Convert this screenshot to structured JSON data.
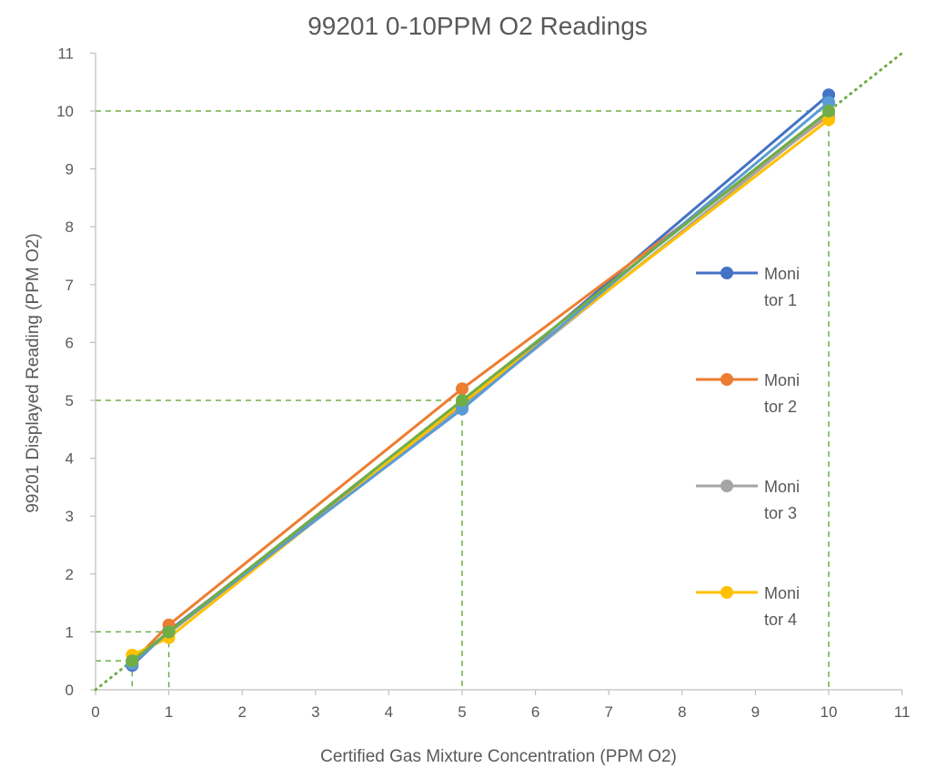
{
  "chart_data": {
    "type": "line",
    "title": "99201 0-10PPM O2 Readings",
    "xlabel": "Certified Gas Mixture Concentration (PPM O2)",
    "ylabel": "99201 Displayed Reading (PPM O2)",
    "xlim": [
      0,
      11
    ],
    "ylim": [
      0,
      11
    ],
    "xticks": [
      "0",
      "1",
      "2",
      "3",
      "4",
      "5",
      "6",
      "7",
      "8",
      "9",
      "10",
      "11"
    ],
    "yticks": [
      "0",
      "1",
      "2",
      "3",
      "4",
      "5",
      "6",
      "7",
      "8",
      "9",
      "10",
      "11"
    ],
    "grid": false,
    "legend_position": "right",
    "x": [
      0.5,
      1,
      5,
      10
    ],
    "series": [
      {
        "name": "Monitor 1",
        "legend_lines": [
          "Moni",
          "tor 1"
        ],
        "values": [
          0.42,
          1.02,
          4.9,
          10.28
        ],
        "color": "#4472C4",
        "in_legend": true
      },
      {
        "name": "Monitor 2",
        "legend_lines": [
          "Moni",
          "tor 2"
        ],
        "values": [
          0.48,
          1.12,
          5.2,
          9.92
        ],
        "color": "#ED7D31",
        "in_legend": true
      },
      {
        "name": "Monitor 3",
        "legend_lines": [
          "Moni",
          "tor 3"
        ],
        "values": [
          0.5,
          0.98,
          4.88,
          9.95
        ],
        "color": "#A5A5A5",
        "in_legend": true
      },
      {
        "name": "Monitor 4",
        "legend_lines": [
          "Moni",
          "tor 4"
        ],
        "values": [
          0.6,
          0.9,
          4.95,
          9.85
        ],
        "color": "#FFC000",
        "in_legend": true
      },
      {
        "name": "",
        "legend_lines": [],
        "values": [
          0.45,
          1.0,
          4.85,
          10.15
        ],
        "color": "#5B9BD5",
        "in_legend": false
      },
      {
        "name": "",
        "legend_lines": [],
        "values": [
          0.5,
          1.0,
          5.0,
          10.0
        ],
        "color": "#70AD47",
        "in_legend": false
      }
    ],
    "reference_line": {
      "style": "dotted",
      "color": "#70AD47",
      "from": [
        0,
        0
      ],
      "to": [
        11,
        11
      ]
    },
    "guide_lines": {
      "style": "dashed",
      "color": "#70AD47",
      "points": [
        [
          0.5,
          0.5
        ],
        [
          1,
          1
        ],
        [
          5,
          5
        ],
        [
          10,
          10
        ]
      ]
    }
  }
}
